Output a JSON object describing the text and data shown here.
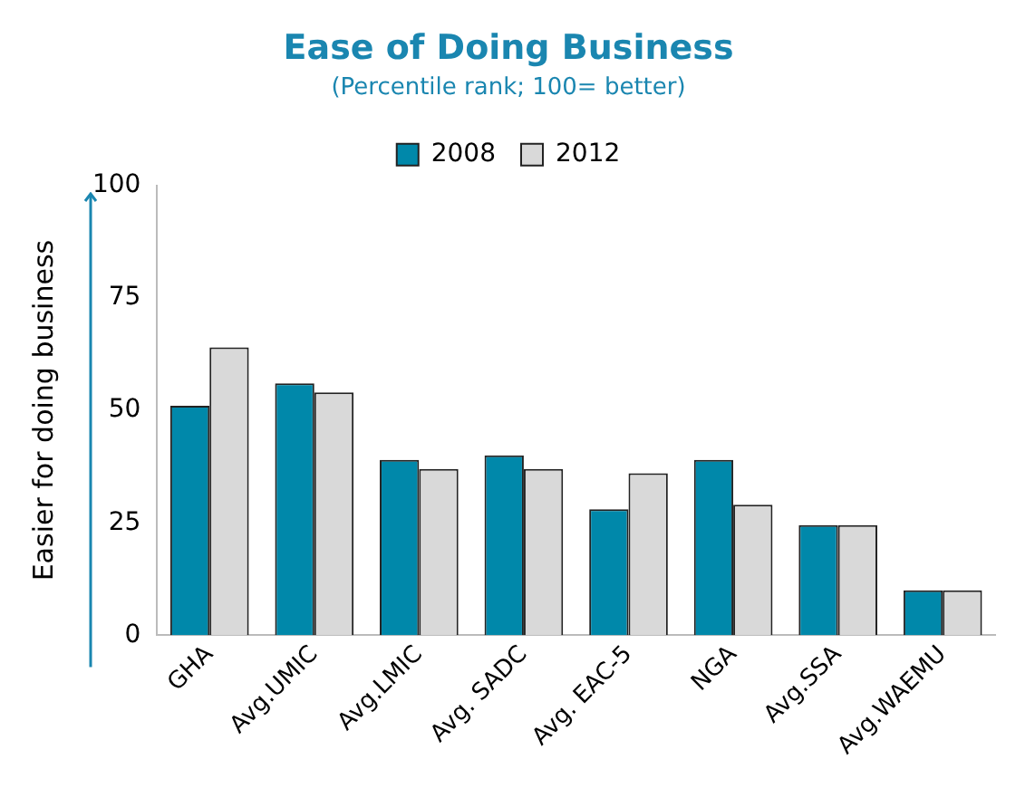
{
  "chart_data": {
    "type": "bar",
    "title": "Ease of Doing Business",
    "subtitle": "(Percentile rank; 100= better)",
    "ylabel": "Easier for doing business",
    "categories": [
      "GHA",
      "Avg.UMIC",
      "Avg.LMIC",
      "Avg. SADC",
      "Avg. EAC-5",
      "NGA",
      "Avg.SSA",
      "Avg.WAEMU"
    ],
    "series": [
      {
        "name": "2008",
        "color": "#0088aa",
        "values": [
          51,
          56,
          39,
          40,
          28,
          39,
          24.5,
          10
        ]
      },
      {
        "name": "2012",
        "color": "#d9d9d9",
        "values": [
          64,
          54,
          37,
          37,
          36,
          29,
          24.5,
          10
        ]
      }
    ],
    "ylim": [
      0,
      100
    ],
    "yticks": [
      0,
      25,
      50,
      75,
      100
    ],
    "grid": false,
    "legend": "top"
  }
}
